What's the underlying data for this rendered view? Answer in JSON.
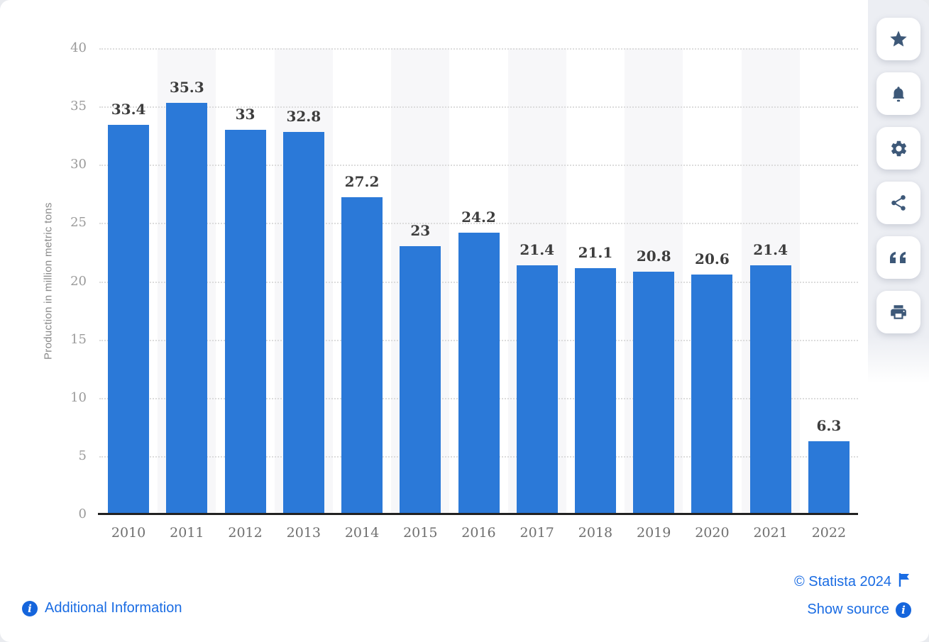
{
  "chart_data": {
    "type": "bar",
    "title": "",
    "categories": [
      "2010",
      "2011",
      "2012",
      "2013",
      "2014",
      "2015",
      "2016",
      "2017",
      "2018",
      "2019",
      "2020",
      "2021",
      "2022"
    ],
    "values": [
      33.4,
      35.3,
      33,
      32.8,
      27.2,
      23,
      24.2,
      21.4,
      21.1,
      20.8,
      20.6,
      21.4,
      6.3
    ],
    "value_labels": [
      "33.4",
      "35.3",
      "33",
      "32.8",
      "27.2",
      "23",
      "24.2",
      "21.4",
      "21.1",
      "20.8",
      "20.6",
      "21.4",
      "6.3"
    ],
    "xlabel": "",
    "ylabel": "Production in million metric tons",
    "ylim": [
      0,
      40
    ],
    "yticks": [
      0,
      5,
      10,
      15,
      20,
      25,
      30,
      35,
      40
    ],
    "grid": "horizontal-dotted",
    "legend_position": "none",
    "bar_color": "#2b79d8",
    "column_stripe_color": "#f7f7f9"
  },
  "toolbar": {
    "buttons": [
      {
        "name": "favorite",
        "icon": "star-icon"
      },
      {
        "name": "notification",
        "icon": "bell-icon"
      },
      {
        "name": "settings",
        "icon": "gear-icon"
      },
      {
        "name": "share",
        "icon": "share-icon"
      },
      {
        "name": "cite",
        "icon": "quote-icon"
      },
      {
        "name": "print",
        "icon": "printer-icon"
      }
    ]
  },
  "footer": {
    "additional_information_label": "Additional Information",
    "copyright_label": "© Statista 2024",
    "show_source_label": "Show source"
  },
  "colors": {
    "bar": "#2b79d8",
    "link_blue": "#1a6ce3",
    "info_icon_blue": "#1565dc",
    "toolbar_icon": "#3d5878",
    "axis_text": "#9a9a9a",
    "value_label_text": "#3d3d3d",
    "baseline": "#222222",
    "gridline": "#dcdcdc",
    "column_stripe": "#f7f7f9",
    "card_background": "#ffffff",
    "page_background": "#e9ebef"
  }
}
